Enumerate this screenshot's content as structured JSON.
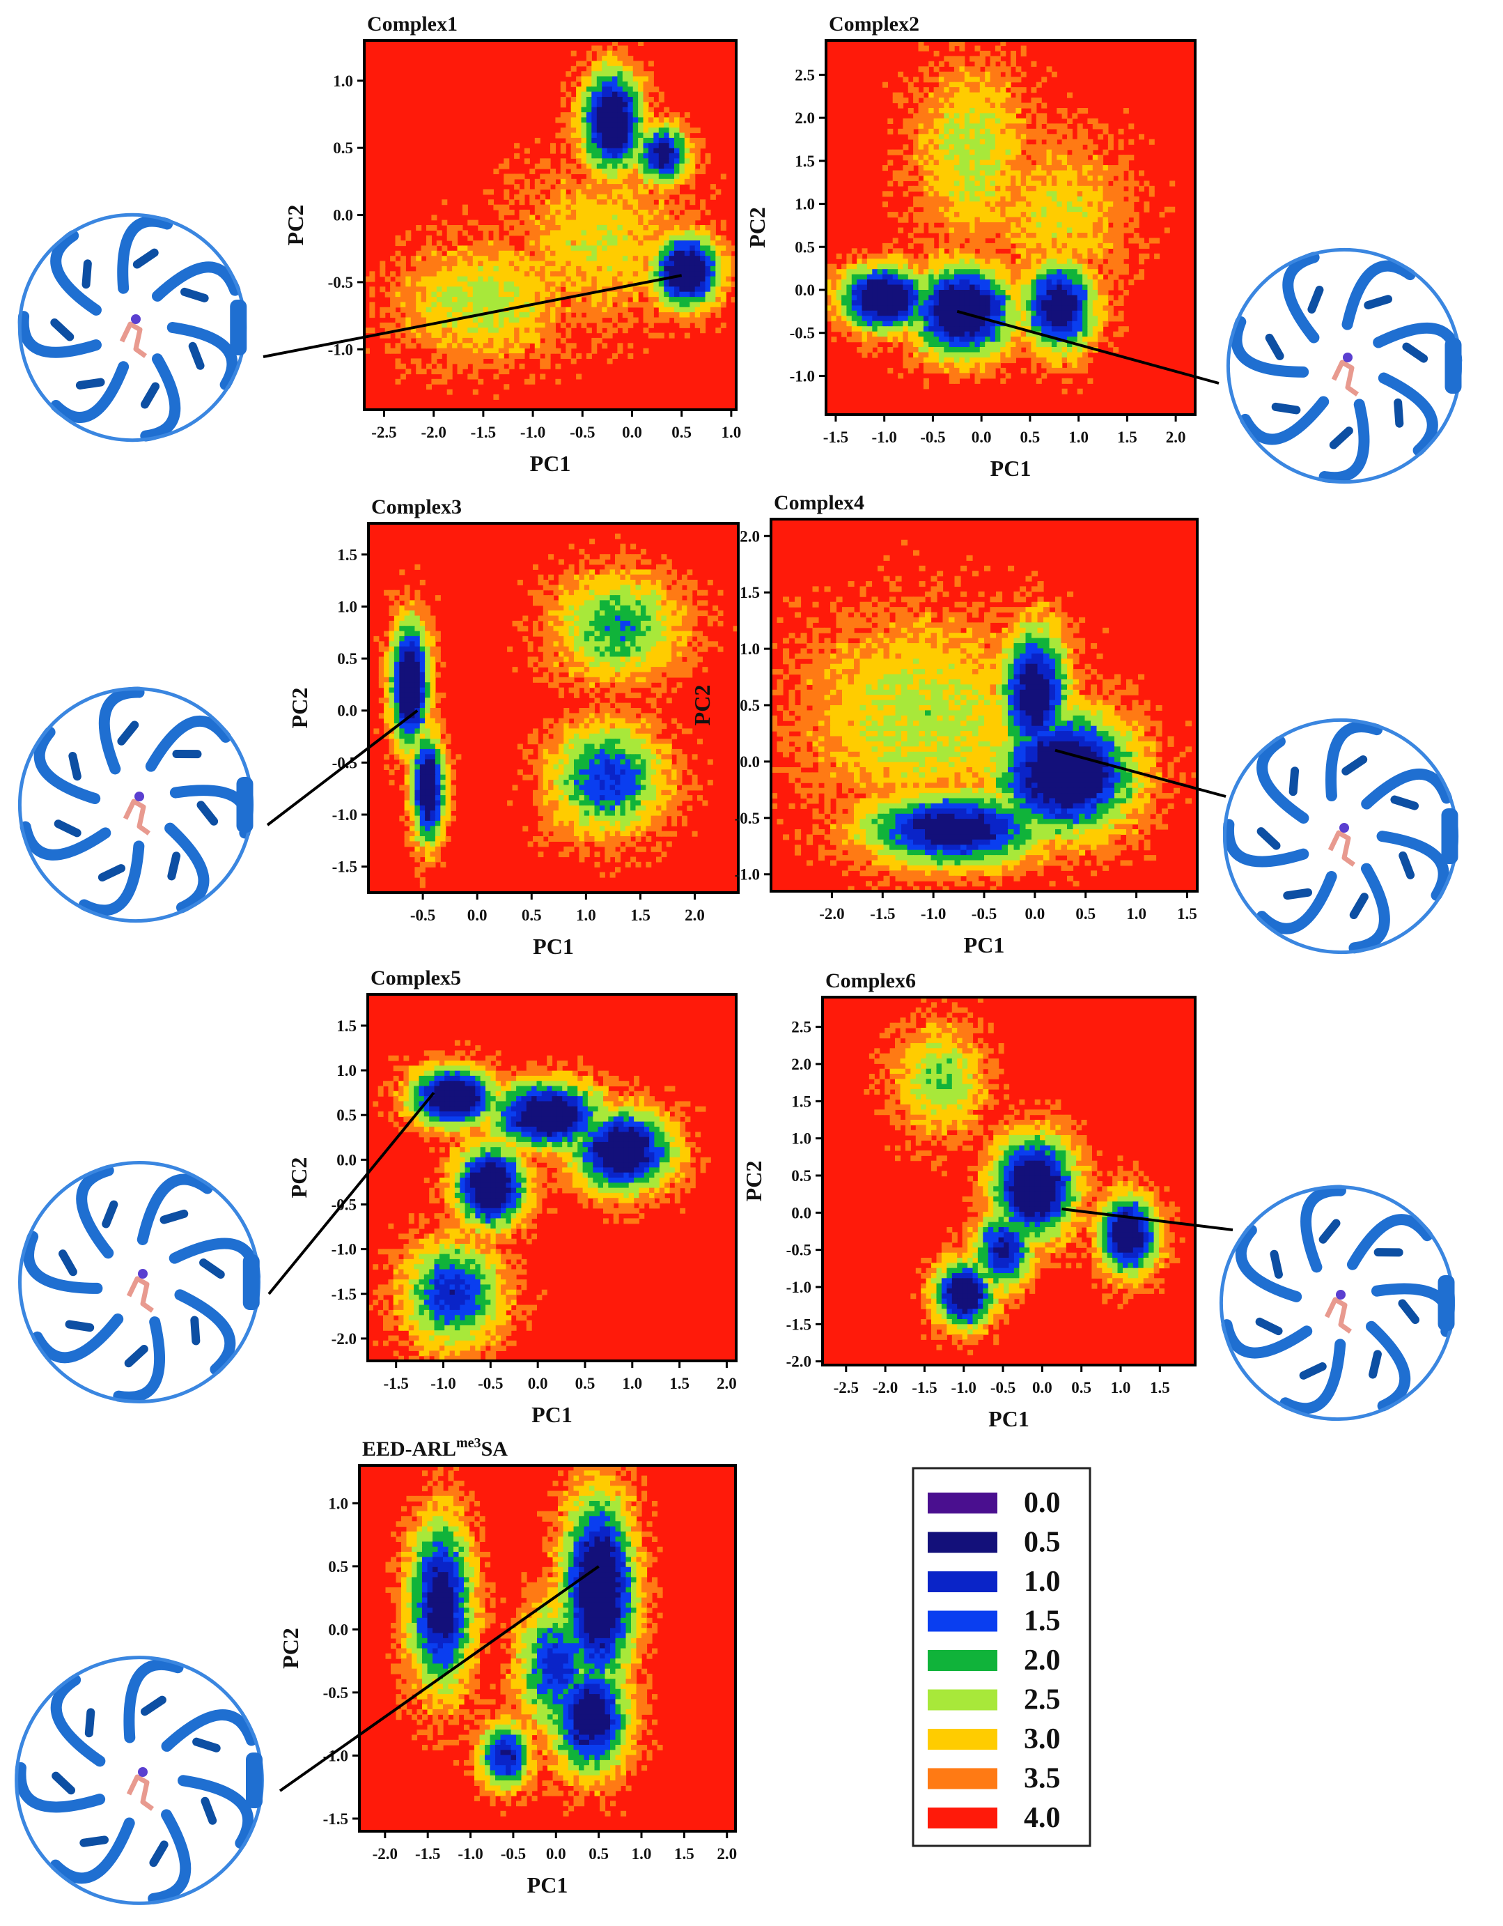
{
  "figure": {
    "panels_description": "Free energy landscapes on PC1/PC2",
    "legend": {
      "entries": [
        {
          "label": "0.0",
          "color": "#4a0f8f"
        },
        {
          "label": "0.5",
          "color": "#13107a"
        },
        {
          "label": "1.0",
          "color": "#0a24c8"
        },
        {
          "label": "1.5",
          "color": "#0a3ef0"
        },
        {
          "label": "2.0",
          "color": "#10b33a"
        },
        {
          "label": "2.5",
          "color": "#a8e83a"
        },
        {
          "label": "3.0",
          "color": "#ffcc00"
        },
        {
          "label": "3.5",
          "color": "#ff7a14"
        },
        {
          "label": "4.0",
          "color": "#ff1a0a"
        }
      ]
    },
    "protein_icon": "eed-protein-cartoon-with-ligand"
  },
  "chart_data": [
    {
      "type": "heatmap",
      "title": "Complex1",
      "xlabel": "PC1",
      "ylabel": "PC2",
      "xlim": [
        -2.7,
        1.05
      ],
      "ylim": [
        -1.45,
        1.3
      ],
      "xticks": [
        "-2.5",
        "-2.0",
        "-1.5",
        "-1.0",
        "-0.5",
        "0.0",
        "0.5",
        "1.0"
      ],
      "xtick_values": [
        -2.5,
        -2.0,
        -1.5,
        -1.0,
        -0.5,
        0.0,
        0.5,
        1.0
      ],
      "yticks": [
        "1.0",
        "0.5",
        "0.0",
        "-0.5",
        "-1.0"
      ],
      "ytick_values": [
        1.0,
        0.5,
        0.0,
        -0.5,
        -1.0
      ],
      "energy_scale": "0.0-4.0",
      "basins": [
        {
          "x": -0.2,
          "y": 0.7,
          "sx": 0.2,
          "sy": 0.25,
          "depth": 4.0
        },
        {
          "x": 0.3,
          "y": 0.45,
          "sx": 0.18,
          "sy": 0.15,
          "depth": 3.2
        },
        {
          "x": 0.55,
          "y": -0.42,
          "sx": 0.22,
          "sy": 0.18,
          "depth": 4.0
        },
        {
          "x": -1.5,
          "y": -0.65,
          "sx": 0.6,
          "sy": 0.3,
          "depth": 1.3
        },
        {
          "x": -0.3,
          "y": -0.2,
          "sx": 0.6,
          "sy": 0.4,
          "depth": 1.0
        }
      ],
      "structure_pointer": {
        "x": 0.5,
        "y": -0.45
      }
    },
    {
      "type": "heatmap",
      "title": "Complex2",
      "xlabel": "PC1",
      "ylabel": "PC2",
      "xlim": [
        -1.6,
        2.2
      ],
      "ylim": [
        -1.45,
        2.9
      ],
      "xticks": [
        "-1.5",
        "-1.0",
        "-0.5",
        "0.0",
        "0.5",
        "1.0",
        "1.5",
        "2.0"
      ],
      "xtick_values": [
        -1.5,
        -1.0,
        -0.5,
        0.0,
        0.5,
        1.0,
        1.5,
        2.0
      ],
      "yticks": [
        "2.5",
        "2.0",
        "1.5",
        "1.0",
        "0.5",
        "0.0",
        "-0.5",
        "-1.0"
      ],
      "ytick_values": [
        2.5,
        2.0,
        1.5,
        1.0,
        0.5,
        0.0,
        -0.5,
        -1.0
      ],
      "energy_scale": "0.0-4.0",
      "basins": [
        {
          "x": -1.0,
          "y": -0.1,
          "sx": 0.3,
          "sy": 0.25,
          "depth": 4.0
        },
        {
          "x": -0.2,
          "y": -0.25,
          "sx": 0.35,
          "sy": 0.35,
          "depth": 4.0
        },
        {
          "x": 0.8,
          "y": -0.2,
          "sx": 0.25,
          "sy": 0.35,
          "depth": 3.5
        },
        {
          "x": -0.1,
          "y": 1.6,
          "sx": 0.4,
          "sy": 0.7,
          "depth": 1.3
        },
        {
          "x": 0.8,
          "y": 0.9,
          "sx": 0.5,
          "sy": 0.6,
          "depth": 1.0
        }
      ],
      "structure_pointer": {
        "x": -0.25,
        "y": -0.25
      }
    },
    {
      "type": "heatmap",
      "title": "Complex3",
      "xlabel": "PC1",
      "ylabel": "PC2",
      "xlim": [
        -1.0,
        2.4
      ],
      "ylim": [
        -1.75,
        1.8
      ],
      "xticks": [
        "-0.5",
        "0.0",
        "0.5",
        "1.0",
        "1.5",
        "2.0"
      ],
      "xtick_values": [
        -0.5,
        0.0,
        0.5,
        1.0,
        1.5,
        2.0
      ],
      "yticks": [
        "1.5",
        "1.0",
        "0.5",
        "0.0",
        "-0.5",
        "-1.0",
        "-1.5"
      ],
      "ytick_values": [
        1.5,
        1.0,
        0.5,
        0.0,
        -0.5,
        -1.0,
        -1.5
      ],
      "energy_scale": "0.0-4.0",
      "basins": [
        {
          "x": -0.62,
          "y": 0.25,
          "sx": 0.12,
          "sy": 0.4,
          "depth": 4.0
        },
        {
          "x": -0.45,
          "y": -0.75,
          "sx": 0.1,
          "sy": 0.35,
          "depth": 3.8
        },
        {
          "x": 1.3,
          "y": 0.8,
          "sx": 0.4,
          "sy": 0.35,
          "depth": 1.9
        },
        {
          "x": 1.2,
          "y": -0.65,
          "sx": 0.35,
          "sy": 0.35,
          "depth": 2.5
        }
      ],
      "structure_pointer": {
        "x": -0.55,
        "y": 0.0
      }
    },
    {
      "type": "heatmap",
      "title": "Complex4",
      "xlabel": "PC1",
      "ylabel": "PC2",
      "xlim": [
        -2.6,
        1.6
      ],
      "ylim": [
        -1.15,
        2.15
      ],
      "xticks": [
        "-2.0",
        "-1.5",
        "-1.0",
        "-0.5",
        "0.0",
        "0.5",
        "1.0",
        "1.5"
      ],
      "xtick_values": [
        -2.0,
        -1.5,
        -1.0,
        -0.5,
        0.0,
        0.5,
        1.0,
        1.5
      ],
      "yticks": [
        "2.0",
        "1.5",
        "1.0",
        "0.5",
        "0.0",
        "-0.5",
        "-1.0"
      ],
      "ytick_values": [
        2.0,
        1.5,
        1.0,
        0.5,
        0.0,
        -0.5,
        -1.0
      ],
      "energy_scale": "0.0-4.0",
      "basins": [
        {
          "x": 0.3,
          "y": -0.1,
          "sx": 0.45,
          "sy": 0.35,
          "depth": 4.0
        },
        {
          "x": 0.0,
          "y": 0.6,
          "sx": 0.22,
          "sy": 0.4,
          "depth": 3.5
        },
        {
          "x": -0.8,
          "y": -0.6,
          "sx": 0.6,
          "sy": 0.22,
          "depth": 3.4
        },
        {
          "x": -1.1,
          "y": 0.4,
          "sx": 0.8,
          "sy": 0.6,
          "depth": 1.3
        }
      ],
      "structure_pointer": {
        "x": 0.2,
        "y": 0.1
      }
    },
    {
      "type": "heatmap",
      "title": "Complex5",
      "xlabel": "PC1",
      "ylabel": "PC2",
      "xlim": [
        -1.8,
        2.1
      ],
      "ylim": [
        -2.25,
        1.85
      ],
      "xticks": [
        "-1.5",
        "-1.0",
        "-0.5",
        "0.0",
        "0.5",
        "1.0",
        "1.5",
        "2.0"
      ],
      "xtick_values": [
        -1.5,
        -1.0,
        -0.5,
        0.0,
        0.5,
        1.0,
        1.5,
        2.0
      ],
      "yticks": [
        "1.5",
        "1.0",
        "0.5",
        "0.0",
        "-0.5",
        "-1.0",
        "-1.5",
        "-2.0"
      ],
      "ytick_values": [
        1.5,
        1.0,
        0.5,
        0.0,
        -0.5,
        -1.0,
        -1.5,
        -2.0
      ],
      "energy_scale": "0.0-4.0",
      "basins": [
        {
          "x": -0.9,
          "y": 0.7,
          "sx": 0.3,
          "sy": 0.22,
          "depth": 4.0
        },
        {
          "x": 0.1,
          "y": 0.5,
          "sx": 0.4,
          "sy": 0.25,
          "depth": 3.8
        },
        {
          "x": 0.9,
          "y": 0.1,
          "sx": 0.35,
          "sy": 0.3,
          "depth": 3.8
        },
        {
          "x": -0.5,
          "y": -0.3,
          "sx": 0.25,
          "sy": 0.3,
          "depth": 4.0
        },
        {
          "x": -0.9,
          "y": -1.5,
          "sx": 0.35,
          "sy": 0.4,
          "depth": 2.6
        }
      ],
      "structure_pointer": {
        "x": -1.1,
        "y": 0.75
      }
    },
    {
      "type": "heatmap",
      "title": "Complex6",
      "xlabel": "PC1",
      "ylabel": "PC2",
      "xlim": [
        -2.8,
        1.95
      ],
      "ylim": [
        -2.05,
        2.9
      ],
      "xticks": [
        "-2.5",
        "-2.0",
        "-1.5",
        "-1.0",
        "-0.5",
        "0.0",
        "0.5",
        "1.0",
        "1.5"
      ],
      "xtick_values": [
        -2.5,
        -2.0,
        -1.5,
        -1.0,
        -0.5,
        0.0,
        0.5,
        1.0,
        1.5
      ],
      "yticks": [
        "2.5",
        "2.0",
        "1.5",
        "1.0",
        "0.5",
        "0.0",
        "-0.5",
        "-1.0",
        "-1.5",
        "-2.0"
      ],
      "ytick_values": [
        2.5,
        2.0,
        1.5,
        1.0,
        0.5,
        0.0,
        -0.5,
        -1.0,
        -1.5,
        -2.0
      ],
      "energy_scale": "0.0-4.0",
      "basins": [
        {
          "x": -0.1,
          "y": 0.35,
          "sx": 0.35,
          "sy": 0.45,
          "depth": 4.0
        },
        {
          "x": 1.1,
          "y": -0.3,
          "sx": 0.25,
          "sy": 0.35,
          "depth": 3.8
        },
        {
          "x": -1.0,
          "y": -1.1,
          "sx": 0.25,
          "sy": 0.3,
          "depth": 3.8
        },
        {
          "x": -0.5,
          "y": -0.5,
          "sx": 0.25,
          "sy": 0.35,
          "depth": 3.0
        },
        {
          "x": -1.3,
          "y": 1.8,
          "sx": 0.4,
          "sy": 0.5,
          "depth": 1.5
        }
      ],
      "structure_pointer": {
        "x": 0.25,
        "y": 0.05
      }
    },
    {
      "type": "heatmap",
      "title": "EED-ARLme3SA",
      "xlabel": "PC1",
      "ylabel": "PC2",
      "xlim": [
        -2.3,
        2.1
      ],
      "ylim": [
        -1.6,
        1.3
      ],
      "xticks": [
        "-2.0",
        "-1.5",
        "-1.0",
        "-0.5",
        "0.0",
        "0.5",
        "1.0",
        "1.5",
        "2.0"
      ],
      "xtick_values": [
        -2.0,
        -1.5,
        -1.0,
        -0.5,
        0.0,
        0.5,
        1.0,
        1.5,
        2.0
      ],
      "yticks": [
        "1.0",
        "0.5",
        "0.0",
        "-0.5",
        "-1.0",
        "-1.5"
      ],
      "ytick_values": [
        1.0,
        0.5,
        0.0,
        -0.5,
        -1.0,
        -1.5
      ],
      "energy_scale": "0.0-4.0",
      "basins": [
        {
          "x": 0.5,
          "y": 0.3,
          "sx": 0.28,
          "sy": 0.5,
          "depth": 4.0
        },
        {
          "x": 0.4,
          "y": -0.7,
          "sx": 0.3,
          "sy": 0.3,
          "depth": 3.5
        },
        {
          "x": -1.35,
          "y": 0.2,
          "sx": 0.25,
          "sy": 0.45,
          "depth": 3.4
        },
        {
          "x": -0.6,
          "y": -1.0,
          "sx": 0.2,
          "sy": 0.18,
          "depth": 3.0
        },
        {
          "x": 0.0,
          "y": -0.3,
          "sx": 0.3,
          "sy": 0.35,
          "depth": 2.6
        }
      ],
      "structure_pointer": {
        "x": 0.5,
        "y": 0.5
      }
    }
  ]
}
